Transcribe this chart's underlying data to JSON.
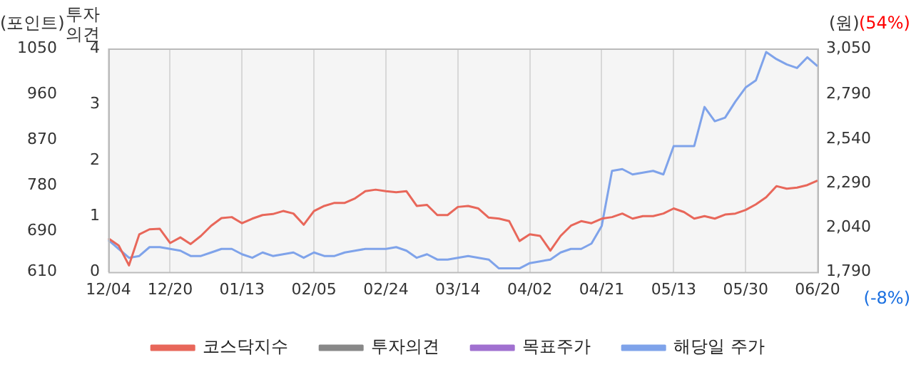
{
  "chart_data": {
    "type": "line",
    "categories": [
      "12/04",
      null,
      null,
      null,
      null,
      null,
      "12/20",
      null,
      null,
      null,
      null,
      null,
      null,
      "01/13",
      null,
      null,
      null,
      null,
      null,
      null,
      "02/05",
      null,
      null,
      null,
      null,
      null,
      null,
      "02/24",
      null,
      null,
      null,
      null,
      null,
      null,
      "03/14",
      null,
      null,
      null,
      null,
      null,
      null,
      "04/02",
      null,
      null,
      null,
      null,
      null,
      null,
      "04/21",
      null,
      null,
      null,
      null,
      null,
      null,
      "05/13",
      null,
      null,
      null,
      null,
      null,
      null,
      "05/30",
      null,
      null,
      null,
      null,
      null,
      null,
      "06/20"
    ],
    "series": [
      {
        "name": "코스닥지수",
        "color": "#e8675a",
        "values": [
          676,
          662,
          623,
          684,
          694,
          695,
          667,
          678,
          665,
          681,
          701,
          716,
          718,
          706,
          715,
          722,
          724,
          730,
          725,
          703,
          730,
          740,
          746,
          746,
          755,
          769,
          772,
          769,
          767,
          769,
          740,
          742,
          722,
          722,
          738,
          740,
          735,
          717,
          715,
          710,
          671,
          684,
          681,
          652,
          681,
          701,
          710,
          706,
          715,
          718,
          725,
          715,
          720,
          720,
          725,
          735,
          728,
          715,
          720,
          715,
          723,
          725,
          732,
          743,
          757,
          779,
          774,
          776,
          781,
          790
        ]
      },
      {
        "name": "투자의견",
        "color": "#888888",
        "axis": "y3",
        "values": [
          null,
          null,
          null,
          null,
          null,
          null,
          null,
          null,
          null,
          null,
          null,
          null,
          null,
          null,
          null,
          null,
          null,
          null,
          null,
          null,
          null,
          null,
          null,
          null,
          null,
          null,
          null,
          null,
          null,
          null,
          null,
          null,
          null,
          null,
          null,
          null,
          null,
          null,
          null,
          null,
          null,
          null,
          null,
          null,
          null,
          null,
          null,
          null,
          null,
          null,
          null,
          null,
          null,
          null,
          null,
          null,
          null,
          null,
          null,
          null,
          null,
          null,
          null,
          null,
          null,
          null,
          null,
          null,
          null,
          null
        ]
      },
      {
        "name": "목표주가",
        "color": "#a070d0",
        "axis": "y2",
        "values": [
          null,
          null,
          null,
          null,
          null,
          null,
          null,
          null,
          null,
          null,
          null,
          null,
          null,
          null,
          null,
          null,
          null,
          null,
          null,
          null,
          null,
          null,
          null,
          null,
          null,
          null,
          null,
          null,
          null,
          null,
          null,
          null,
          null,
          null,
          null,
          null,
          null,
          null,
          null,
          null,
          null,
          null,
          null,
          null,
          null,
          null,
          null,
          null,
          null,
          null,
          null,
          null,
          null,
          null,
          null,
          null,
          null,
          null,
          null,
          null,
          null,
          null,
          null,
          null,
          null,
          null,
          null,
          null,
          null,
          null
        ]
      },
      {
        "name": "해당일 주가",
        "color": "#7fa3ea",
        "axis": "y2",
        "values": [
          1970,
          1920,
          1870,
          1880,
          1930,
          1930,
          1920,
          1910,
          1880,
          1880,
          1900,
          1920,
          1920,
          1890,
          1870,
          1900,
          1880,
          1890,
          1900,
          1870,
          1900,
          1880,
          1880,
          1900,
          1910,
          1920,
          1920,
          1920,
          1930,
          1910,
          1870,
          1890,
          1860,
          1860,
          1870,
          1880,
          1870,
          1860,
          1810,
          1810,
          1810,
          1840,
          1850,
          1860,
          1900,
          1920,
          1920,
          1950,
          2050,
          2360,
          2370,
          2340,
          2350,
          2360,
          2340,
          2500,
          2500,
          2500,
          2720,
          2640,
          2660,
          2750,
          2830,
          2870,
          3030,
          2990,
          2960,
          2940,
          3000,
          2950
        ]
      }
    ],
    "ylabel": "(포인트)",
    "y2label": "(원)",
    "y3label": "투자의견",
    "ylim": [
      610,
      1050
    ],
    "yticks": [
      610,
      690,
      780,
      870,
      960,
      1050
    ],
    "y2lim": [
      1790,
      3050
    ],
    "y2ticks": [
      {
        "value": 1790,
        "label": "1,790"
      },
      {
        "value": 2040,
        "label": "2,040"
      },
      {
        "value": 2290,
        "label": "2,290"
      },
      {
        "value": 2540,
        "label": "2,540"
      },
      {
        "value": 2790,
        "label": "2,790"
      },
      {
        "value": 3050,
        "label": "3,050"
      }
    ],
    "y3lim": [
      0,
      4
    ],
    "y3ticks": [
      0,
      1,
      2,
      3,
      4
    ],
    "annotations": [
      "(54%)",
      "(-8%)"
    ],
    "grid": "x",
    "legend": "bottom",
    "marker": "none",
    "line_style": "solid"
  }
}
